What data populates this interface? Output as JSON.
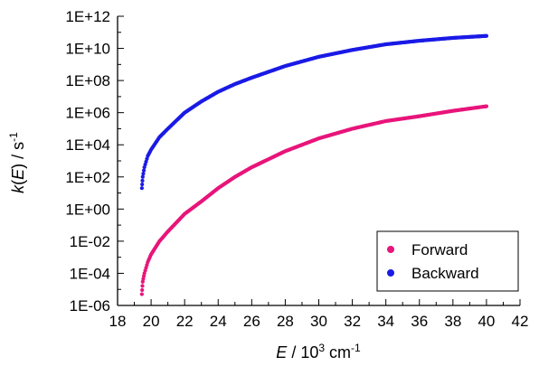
{
  "chart_data": {
    "type": "scatter",
    "title": "",
    "xlabel": {
      "var": "E",
      "rest1": " / 10",
      "sup": "3",
      "rest2": " cm",
      "sup2": "-1"
    },
    "ylabel": {
      "k": "k",
      "p1": "(",
      "E": "E",
      "p2": ") / s",
      "sup": "-1"
    },
    "xlim": [
      18,
      42
    ],
    "ylim_log10": [
      -6,
      12
    ],
    "yscale": "log",
    "x_ticks": [
      "18",
      "20",
      "22",
      "24",
      "26",
      "28",
      "30",
      "32",
      "34",
      "36",
      "38",
      "40",
      "42"
    ],
    "y_ticks": [
      "1E+12",
      "1E+10",
      "1E+08",
      "1E+06",
      "1E+04",
      "1E+02",
      "1E+00",
      "1E-02",
      "1E-04",
      "1E-06"
    ],
    "grid": false,
    "legend_position": "bottom-right",
    "series": [
      {
        "name": "Forward",
        "color": "#e8157a",
        "x": [
          19.45,
          19.5,
          19.6,
          19.8,
          20,
          20.5,
          21,
          22,
          23,
          24,
          25,
          26,
          28,
          30,
          32,
          34,
          36,
          38,
          40
        ],
        "y": [
          5e-06,
          3e-05,
          0.0001,
          0.0005,
          0.0015,
          0.01,
          0.04,
          0.5,
          3,
          20,
          100,
          400,
          4000,
          25000,
          100000,
          300000,
          600000,
          1300000,
          2500000
        ]
      },
      {
        "name": "Backward",
        "color": "#1a1ae6",
        "x": [
          19.45,
          19.5,
          19.6,
          19.8,
          20,
          20.5,
          21,
          22,
          23,
          24,
          25,
          26,
          28,
          30,
          32,
          34,
          36,
          38,
          40
        ],
        "y": [
          20,
          100,
          400,
          2000,
          5000,
          30000,
          100000,
          1000000,
          5000000,
          20000000,
          60000000,
          150000000,
          800000000,
          3000000000,
          8000000000,
          18000000000,
          30000000000,
          45000000000,
          60000000000
        ]
      }
    ]
  }
}
